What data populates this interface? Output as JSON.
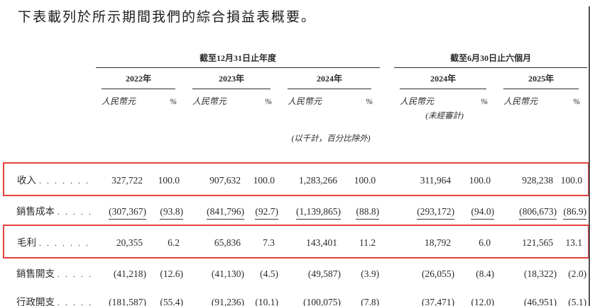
{
  "title": "下表載列於所示期間我們的綜合損益表概要。",
  "table": {
    "highlight_color": "#e8413c",
    "leader_dots": ". . . . . . . . . . . . . . . . . . . . . . . . . . . . . . . . . . .",
    "col_groups": [
      {
        "title": "截至12月31日止年度",
        "years": [
          {
            "label": "2022年"
          },
          {
            "label": "2023年"
          },
          {
            "label": "2024年"
          }
        ]
      },
      {
        "title": "截至6月30日止六個月",
        "years": [
          {
            "label": "2024年",
            "note": "(未經審計)"
          },
          {
            "label": "2025年"
          }
        ]
      }
    ],
    "currency_label": "人民幣元",
    "percent_label": "%",
    "units_note": "(以千計，百分比除外)",
    "rows": [
      {
        "label": "收入",
        "values": [
          "327,722",
          "100.0",
          "907,632",
          "100.0",
          "1,283,266",
          "100.0",
          "311,964",
          "100.0",
          "928,238",
          "100.0"
        ]
      },
      {
        "label": "銷售成本",
        "values": [
          "(307,367)",
          "(93.8)",
          "(841,796)",
          "(92.7)",
          "(1,139,865)",
          "(88.8)",
          "(293,172)",
          "(94.0)",
          "(806,673)",
          "(86.9)"
        ]
      },
      {
        "label": "毛利",
        "values": [
          "20,355",
          "6.2",
          "65,836",
          "7.3",
          "143,401",
          "11.2",
          "18,792",
          "6.0",
          "121,565",
          "13.1"
        ]
      },
      {
        "label": "銷售開支",
        "values": [
          "(41,218)",
          "(12.6)",
          "(41,130)",
          "(4.5)",
          "(49,587)",
          "(3.9)",
          "(26,055)",
          "(8.4)",
          "(18,322)",
          "(2.0)"
        ]
      },
      {
        "label": "行政開支",
        "values": [
          "(181,587)",
          "(55.4)",
          "(91,236)",
          "(10.1)",
          "(100,075)",
          "(7.8)",
          "(37,471)",
          "(12.0)",
          "(46,951)",
          "(5.1)"
        ]
      }
    ]
  }
}
